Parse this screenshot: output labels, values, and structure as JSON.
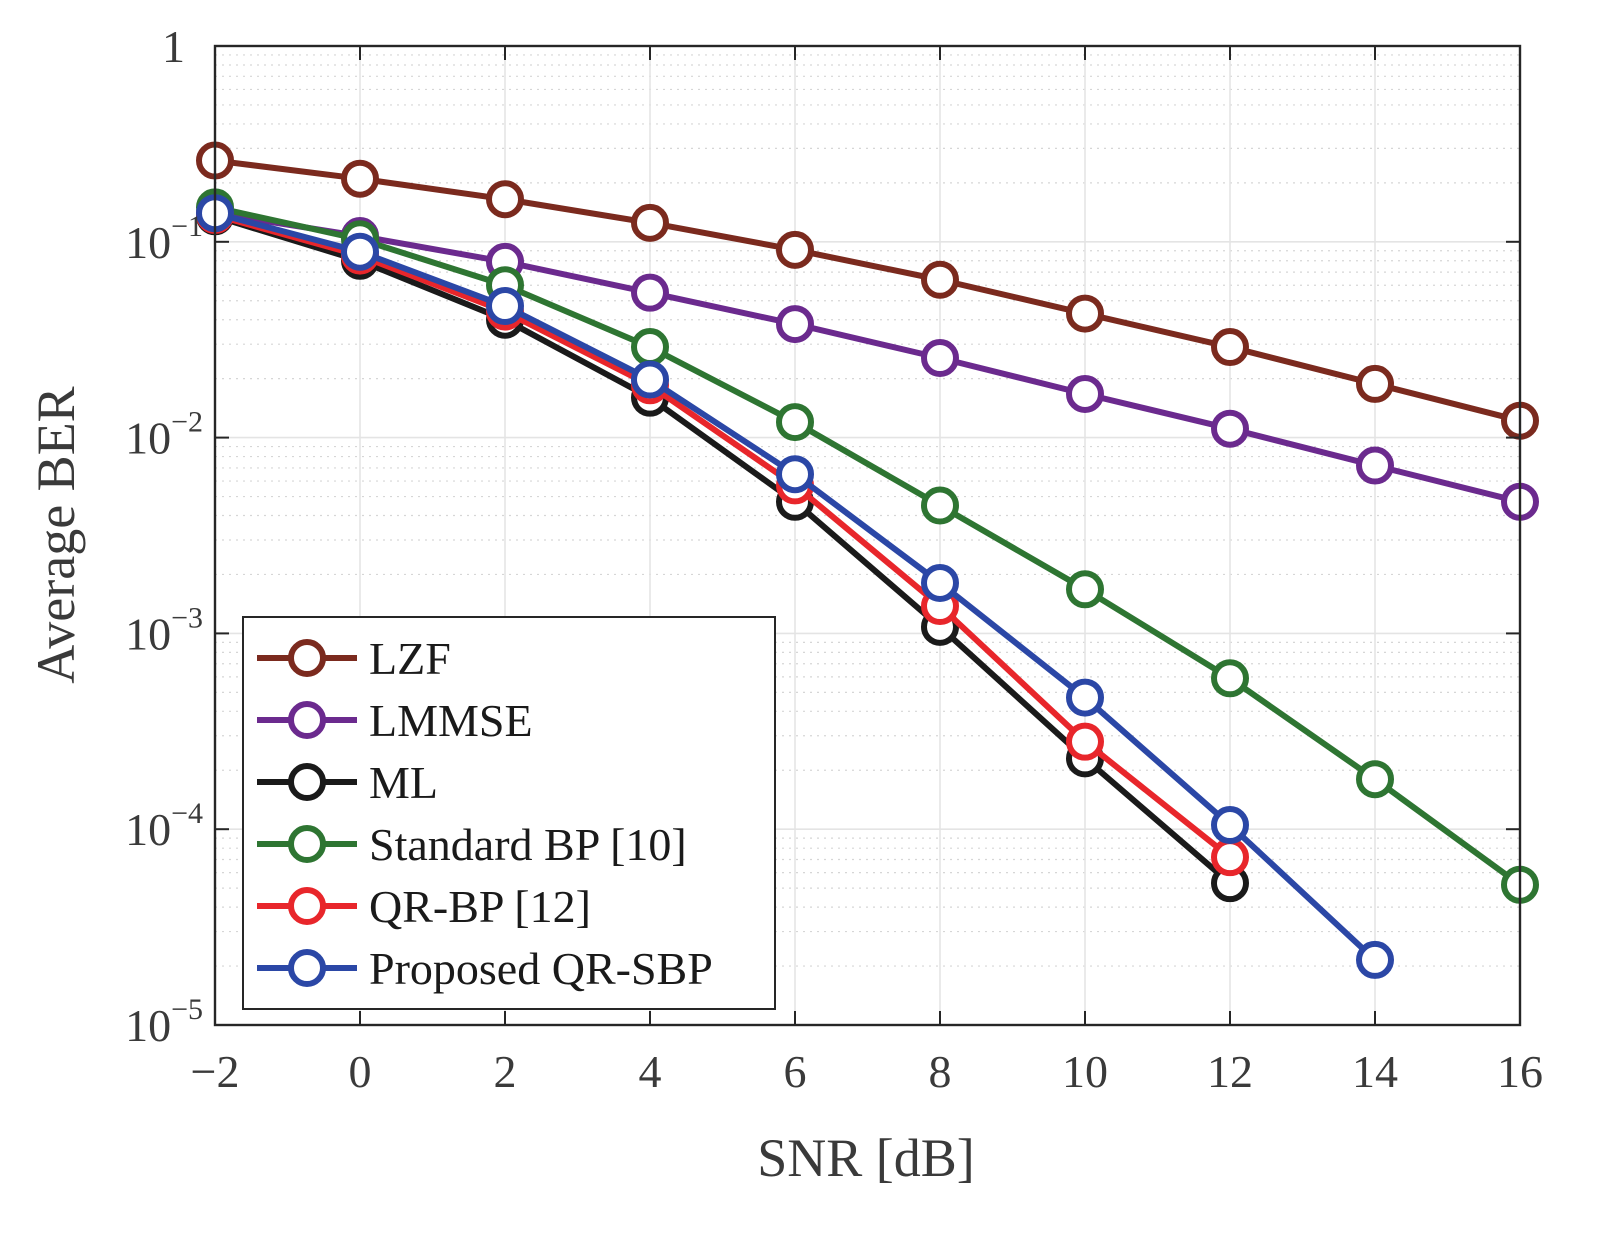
{
  "chart_data": {
    "type": "line",
    "yscale": "log",
    "xlabel": "SNR [dB]",
    "ylabel": "Average BER",
    "xlim": [
      -2,
      16
    ],
    "ylim": [
      1e-05,
      1
    ],
    "x_ticks": [
      -2,
      0,
      2,
      4,
      6,
      8,
      10,
      12,
      14,
      16
    ],
    "x_tick_labels": [
      "−2",
      "0",
      "2",
      "4",
      "6",
      "8",
      "10",
      "12",
      "14",
      "16"
    ],
    "y_ticks": [
      {
        "value": 1,
        "base": "1",
        "exp": ""
      },
      {
        "value": 0.1,
        "base": "10",
        "exp": "−1"
      },
      {
        "value": 0.01,
        "base": "10",
        "exp": "−2"
      },
      {
        "value": 0.001,
        "base": "10",
        "exp": "−3"
      },
      {
        "value": 0.0001,
        "base": "10",
        "exp": "−4"
      },
      {
        "value": 1e-05,
        "base": "10",
        "exp": "−5"
      }
    ],
    "grid": true,
    "legend_position": "bottom-left",
    "series": [
      {
        "name": "LZF",
        "color": "#7b2a1e",
        "x": [
          -2,
          0,
          2,
          4,
          6,
          8,
          10,
          12,
          14,
          16
        ],
        "values": [
          0.26,
          0.21,
          0.165,
          0.125,
          0.091,
          0.064,
          0.043,
          0.029,
          0.0188,
          0.0122
        ]
      },
      {
        "name": "LMMSE",
        "color": "#6b2a8e",
        "x": [
          -2,
          0,
          2,
          4,
          6,
          8,
          10,
          12,
          14,
          16
        ],
        "values": [
          0.14,
          0.107,
          0.079,
          0.055,
          0.038,
          0.0255,
          0.0167,
          0.0111,
          0.0072,
          0.0047
        ]
      },
      {
        "name": "ML",
        "color": "#1a1a1a",
        "x": [
          -2,
          0,
          2,
          4,
          6,
          8,
          10,
          12
        ],
        "values": [
          0.135,
          0.08,
          0.04,
          0.016,
          0.0047,
          0.00108,
          0.00023,
          5.3e-05
        ]
      },
      {
        "name": "Standard BP [10]",
        "color": "#2e7532",
        "x": [
          -2,
          0,
          2,
          4,
          6,
          8,
          10,
          12,
          14,
          16
        ],
        "values": [
          0.15,
          0.103,
          0.06,
          0.029,
          0.012,
          0.0045,
          0.00168,
          0.00059,
          0.00018,
          5.2e-05
        ]
      },
      {
        "name": "QR-BP [12]",
        "color": "#e8262b",
        "x": [
          -2,
          0,
          2,
          4,
          6,
          8,
          10,
          12
        ],
        "values": [
          0.137,
          0.085,
          0.044,
          0.0185,
          0.0057,
          0.00138,
          0.00028,
          7.2e-05
        ]
      },
      {
        "name": "Proposed QR-SBP",
        "color": "#2b47a6",
        "x": [
          -2,
          0,
          2,
          4,
          6,
          8,
          10,
          12,
          14
        ],
        "values": [
          0.14,
          0.089,
          0.047,
          0.0198,
          0.0065,
          0.00181,
          0.00047,
          0.000105,
          2.15e-05
        ]
      }
    ]
  }
}
